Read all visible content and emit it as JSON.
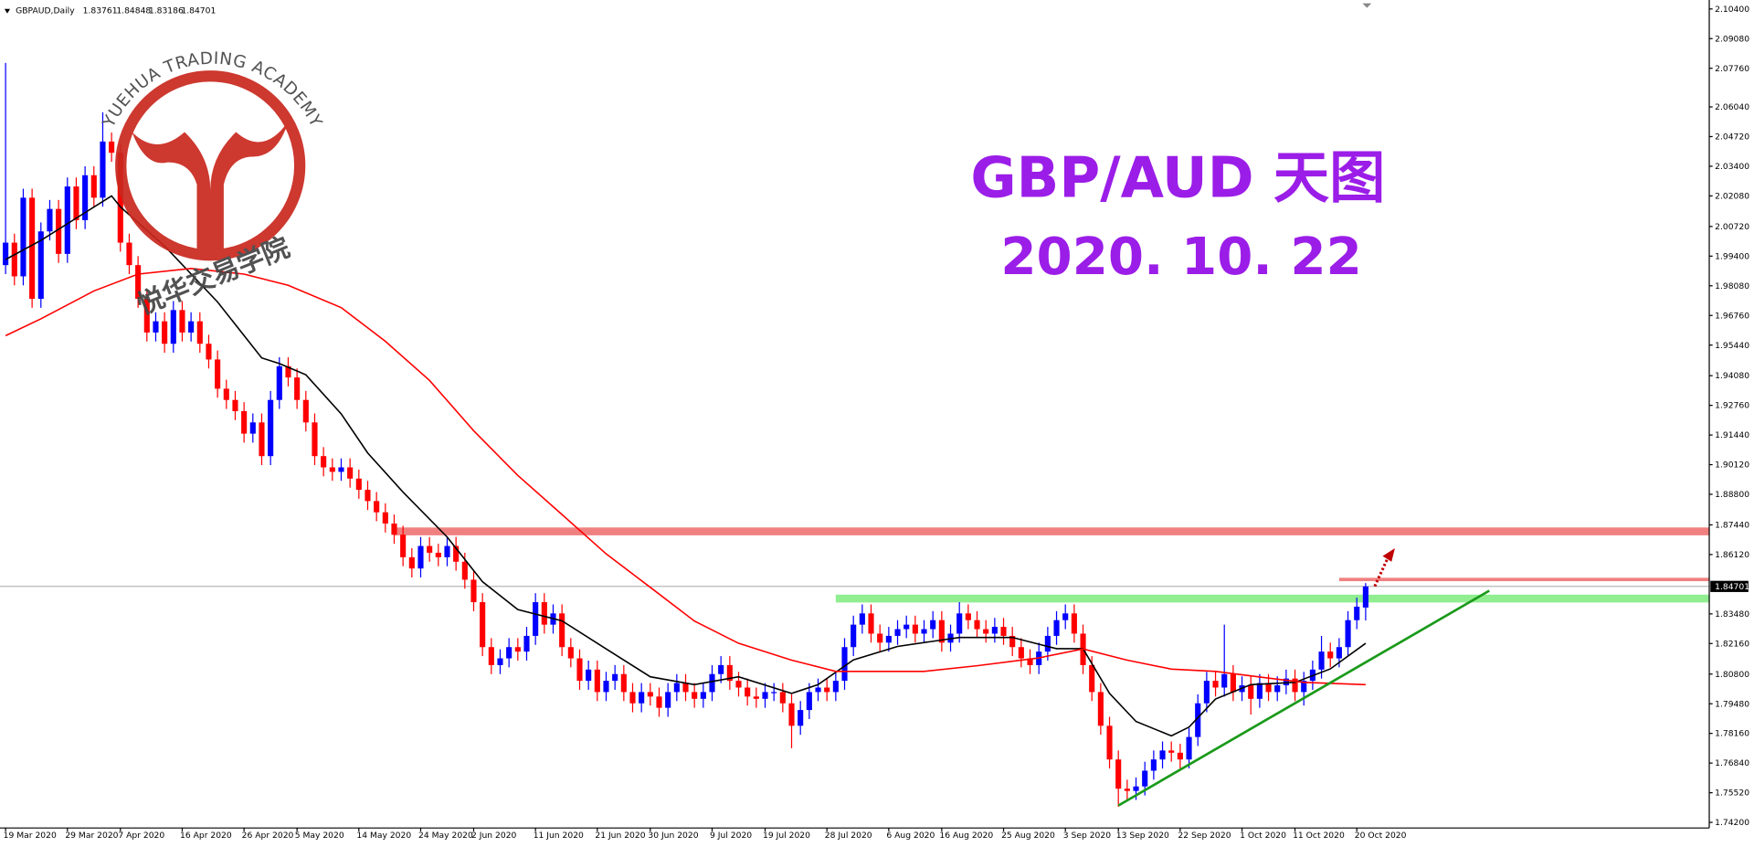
{
  "chart_data": {
    "type": "candlestick",
    "symbol": "GBPAUD,Daily",
    "title": "GBP/AUD 天图",
    "subtitle": "2020. 10. 22",
    "watermark_en": "YUEHUA TRADING ACADEMY",
    "watermark_cn": "悦华交易学院",
    "bull_color": "#0000ff",
    "bear_color": "#ff0000",
    "categories": [
      "19 Mar 2020",
      null,
      null,
      null,
      null,
      null,
      null,
      "29 Mar 2020",
      null,
      null,
      null,
      null,
      null,
      "7 Apr 2020",
      null,
      null,
      null,
      null,
      null,
      null,
      "16 Apr 2020",
      null,
      null,
      null,
      null,
      null,
      null,
      "26 Apr 2020",
      null,
      null,
      null,
      null,
      null,
      "5 May 2020",
      null,
      null,
      null,
      null,
      null,
      null,
      "14 May 2020",
      null,
      null,
      null,
      null,
      null,
      null,
      "24 May 2020",
      null,
      null,
      null,
      null,
      null,
      "2 Jun 2020",
      null,
      null,
      null,
      null,
      null,
      null,
      "11 Jun 2020",
      null,
      null,
      null,
      null,
      null,
      null,
      "21 Jun 2020",
      null,
      null,
      null,
      null,
      null,
      "30 Jun 2020",
      null,
      null,
      null,
      null,
      null,
      null,
      "9 Jul 2020",
      null,
      null,
      null,
      null,
      null,
      "19 Jul 2020",
      null,
      null,
      null,
      null,
      null,
      null,
      "28 Jul 2020",
      null,
      null,
      null,
      null,
      null,
      null,
      "6 Aug 2020",
      null,
      null,
      null,
      null,
      null,
      "16 Aug 2020",
      null,
      null,
      null,
      null,
      null,
      null,
      "25 Aug 2020",
      null,
      null,
      null,
      null,
      null,
      null,
      "3 Sep 2020",
      null,
      null,
      null,
      null,
      null,
      "13 Sep 2020",
      null,
      null,
      null,
      null,
      null,
      null,
      "22 Sep 2020",
      null,
      null,
      null,
      null,
      null,
      null,
      "1 Oct 2020",
      null,
      null,
      null,
      null,
      null,
      "11 Oct 2020",
      null,
      null,
      null,
      null,
      null,
      null,
      "20 Oct 2020",
      null
    ],
    "open": [
      1.99,
      2.0,
      1.985,
      2.02,
      1.975,
      2.005,
      2.015,
      1.995,
      2.025,
      2.01,
      2.03,
      2.02,
      2.045,
      2.04,
      2.0,
      1.99,
      1.975,
      1.96,
      1.965,
      1.955,
      1.97,
      1.96,
      1.965,
      1.955,
      1.948,
      1.935,
      1.93,
      1.925,
      1.915,
      1.92,
      1.905,
      1.93,
      1.945,
      1.94,
      1.93,
      1.92,
      1.905,
      1.9,
      1.898,
      1.9,
      1.895,
      1.89,
      1.885,
      1.88,
      1.875,
      1.87,
      1.86,
      1.855,
      1.865,
      1.862,
      1.86,
      1.865,
      1.858,
      1.85,
      1.84,
      1.82,
      1.812,
      1.815,
      1.82,
      1.818,
      1.825,
      1.84,
      1.83,
      1.835,
      1.82,
      1.815,
      1.805,
      1.81,
      1.8,
      1.805,
      1.808,
      1.8,
      1.795,
      1.8,
      1.798,
      1.793,
      1.8,
      1.804,
      1.8,
      1.797,
      1.8,
      1.808,
      1.812,
      1.805,
      1.802,
      1.798,
      1.797,
      1.8,
      1.8,
      1.795,
      1.785,
      1.792,
      1.8,
      1.802,
      1.8,
      1.805,
      1.82,
      1.83,
      1.835,
      1.826,
      1.822,
      1.825,
      1.828,
      1.83,
      1.826,
      1.828,
      1.832,
      1.822,
      1.826,
      1.835,
      1.832,
      1.828,
      1.826,
      1.829,
      1.825,
      1.82,
      1.815,
      1.812,
      1.818,
      1.825,
      1.832,
      1.835,
      1.826,
      1.812,
      1.8,
      1.785,
      1.77,
      1.757,
      1.756,
      1.758,
      1.765,
      1.77,
      1.774,
      1.773,
      1.77,
      1.78,
      1.795,
      1.805,
      1.802,
      1.808,
      1.8,
      1.803,
      1.797,
      1.804,
      1.8,
      1.803,
      1.806,
      1.8,
      1.805,
      1.81,
      1.818,
      1.815,
      1.82,
      1.832,
      1.83761
    ],
    "high": [
      2.08,
      2.004,
      2.024,
      2.024,
      2.009,
      2.019,
      2.019,
      2.029,
      2.029,
      2.034,
      2.034,
      2.058,
      2.049,
      2.044,
      2.004,
      1.994,
      1.979,
      1.969,
      1.969,
      1.974,
      1.974,
      1.969,
      1.969,
      1.959,
      1.952,
      1.939,
      1.934,
      1.929,
      1.924,
      1.924,
      1.934,
      1.949,
      1.949,
      1.944,
      1.934,
      1.924,
      1.909,
      1.904,
      1.904,
      1.904,
      1.899,
      1.894,
      1.889,
      1.884,
      1.879,
      1.874,
      1.864,
      1.869,
      1.869,
      1.866,
      1.869,
      1.869,
      1.862,
      1.854,
      1.844,
      1.824,
      1.819,
      1.824,
      1.824,
      1.829,
      1.844,
      1.844,
      1.839,
      1.839,
      1.824,
      1.819,
      1.814,
      1.814,
      1.809,
      1.812,
      1.812,
      1.804,
      1.804,
      1.804,
      1.802,
      1.804,
      1.808,
      1.808,
      1.804,
      1.804,
      1.812,
      1.816,
      1.816,
      1.809,
      1.806,
      1.802,
      1.804,
      1.804,
      1.804,
      1.799,
      1.796,
      1.804,
      1.806,
      1.806,
      1.809,
      1.824,
      1.834,
      1.839,
      1.839,
      1.83,
      1.829,
      1.832,
      1.834,
      1.834,
      1.832,
      1.836,
      1.836,
      1.83,
      1.84,
      1.839,
      1.836,
      1.832,
      1.833,
      1.833,
      1.829,
      1.824,
      1.819,
      1.822,
      1.829,
      1.836,
      1.839,
      1.839,
      1.83,
      1.816,
      1.804,
      1.789,
      1.774,
      1.761,
      1.762,
      1.769,
      1.774,
      1.778,
      1.778,
      1.777,
      1.784,
      1.799,
      1.809,
      1.809,
      1.83,
      1.812,
      1.807,
      1.807,
      1.808,
      1.808,
      1.807,
      1.81,
      1.81,
      1.809,
      1.814,
      1.825,
      1.822,
      1.824,
      1.836,
      1.842,
      1.84848
    ],
    "low": [
      1.986,
      1.981,
      1.981,
      1.971,
      1.971,
      2.001,
      1.991,
      1.991,
      2.006,
      2.006,
      2.016,
      2.016,
      2.036,
      1.996,
      1.986,
      1.971,
      1.956,
      1.956,
      1.951,
      1.951,
      1.956,
      1.956,
      1.951,
      1.944,
      1.931,
      1.926,
      1.921,
      1.911,
      1.911,
      1.901,
      1.901,
      1.926,
      1.936,
      1.926,
      1.916,
      1.901,
      1.896,
      1.894,
      1.894,
      1.891,
      1.886,
      1.881,
      1.876,
      1.871,
      1.866,
      1.856,
      1.851,
      1.851,
      1.858,
      1.856,
      1.856,
      1.854,
      1.846,
      1.836,
      1.816,
      1.808,
      1.808,
      1.811,
      1.814,
      1.814,
      1.821,
      1.826,
      1.826,
      1.816,
      1.811,
      1.801,
      1.801,
      1.796,
      1.796,
      1.801,
      1.796,
      1.791,
      1.791,
      1.794,
      1.789,
      1.789,
      1.796,
      1.796,
      1.793,
      1.793,
      1.796,
      1.804,
      1.801,
      1.798,
      1.794,
      1.793,
      1.793,
      1.796,
      1.791,
      1.775,
      1.781,
      1.788,
      1.796,
      1.796,
      1.796,
      1.801,
      1.816,
      1.826,
      1.822,
      1.818,
      1.818,
      1.821,
      1.824,
      1.822,
      1.822,
      1.824,
      1.818,
      1.818,
      1.822,
      1.828,
      1.824,
      1.822,
      1.822,
      1.821,
      1.816,
      1.811,
      1.808,
      1.808,
      1.814,
      1.821,
      1.828,
      1.822,
      1.808,
      1.796,
      1.781,
      1.766,
      1.749,
      1.752,
      1.752,
      1.754,
      1.761,
      1.766,
      1.769,
      1.766,
      1.766,
      1.776,
      1.791,
      1.798,
      1.798,
      1.796,
      1.796,
      1.79,
      1.793,
      1.796,
      1.796,
      1.799,
      1.796,
      1.794,
      1.801,
      1.806,
      1.811,
      1.811,
      1.816,
      1.828,
      1.83186
    ],
    "close": [
      2.0,
      1.985,
      2.02,
      1.975,
      2.005,
      2.015,
      1.995,
      2.025,
      2.01,
      2.03,
      2.02,
      2.045,
      2.04,
      2.0,
      1.99,
      1.975,
      1.96,
      1.965,
      1.955,
      1.97,
      1.96,
      1.965,
      1.955,
      1.948,
      1.935,
      1.93,
      1.925,
      1.915,
      1.92,
      1.905,
      1.93,
      1.945,
      1.94,
      1.93,
      1.92,
      1.905,
      1.9,
      1.898,
      1.9,
      1.895,
      1.89,
      1.885,
      1.88,
      1.875,
      1.87,
      1.86,
      1.855,
      1.865,
      1.862,
      1.86,
      1.865,
      1.858,
      1.85,
      1.84,
      1.82,
      1.812,
      1.815,
      1.82,
      1.818,
      1.825,
      1.84,
      1.83,
      1.835,
      1.82,
      1.815,
      1.805,
      1.81,
      1.8,
      1.805,
      1.808,
      1.8,
      1.795,
      1.8,
      1.798,
      1.793,
      1.8,
      1.804,
      1.8,
      1.797,
      1.8,
      1.808,
      1.812,
      1.805,
      1.802,
      1.798,
      1.797,
      1.8,
      1.8,
      1.795,
      1.785,
      1.792,
      1.8,
      1.802,
      1.8,
      1.805,
      1.82,
      1.83,
      1.835,
      1.826,
      1.822,
      1.825,
      1.828,
      1.83,
      1.826,
      1.828,
      1.832,
      1.822,
      1.826,
      1.835,
      1.832,
      1.828,
      1.826,
      1.829,
      1.825,
      1.82,
      1.815,
      1.812,
      1.818,
      1.825,
      1.832,
      1.835,
      1.826,
      1.812,
      1.8,
      1.785,
      1.77,
      1.757,
      1.756,
      1.758,
      1.765,
      1.77,
      1.774,
      1.773,
      1.77,
      1.78,
      1.795,
      1.805,
      1.802,
      1.808,
      1.8,
      1.803,
      1.797,
      1.804,
      1.8,
      1.803,
      1.806,
      1.8,
      1.805,
      1.81,
      1.818,
      1.815,
      1.82,
      1.832,
      1.838,
      1.84701
    ],
    "series": [
      {
        "color": "#000000",
        "x": [
          0,
          4,
          8,
          12,
          13,
          18,
          24,
          29,
          31,
          34,
          38,
          41,
          45,
          50,
          54,
          58,
          63,
          68,
          73,
          78,
          83,
          89,
          92,
          96,
          101,
          108,
          114,
          119,
          122,
          125,
          128,
          132,
          134,
          137,
          141,
          146,
          150,
          154
        ],
        "values": [
          1.9925,
          2.001,
          2.0109,
          2.0208,
          2.0159,
          1.9985,
          1.9736,
          1.9487,
          1.9462,
          1.9412,
          1.9238,
          1.9064,
          1.889,
          1.869,
          1.8491,
          1.8367,
          1.8317,
          1.8192,
          1.8068,
          1.8033,
          1.8068,
          1.7994,
          1.8033,
          1.8143,
          1.8203,
          1.8243,
          1.8243,
          1.8193,
          1.8193,
          1.7994,
          1.7869,
          1.7805,
          1.7844,
          1.7969,
          1.8033,
          1.8043,
          1.8103,
          1.8217
        ]
      },
      {
        "color": "#ff0000",
        "x": [
          0,
          4,
          10,
          15,
          21,
          27,
          32,
          38,
          43,
          48,
          53,
          58,
          63,
          68,
          73,
          78,
          83,
          89,
          94,
          99,
          104,
          110,
          117,
          122,
          127,
          132,
          137,
          142,
          147,
          154
        ],
        "values": [
          1.9586,
          1.9661,
          1.9785,
          1.986,
          1.9885,
          1.986,
          1.981,
          1.9711,
          1.9561,
          1.9387,
          1.9163,
          1.8964,
          1.879,
          1.8615,
          1.8466,
          1.8316,
          1.8217,
          1.8142,
          1.8092,
          1.8092,
          1.8092,
          1.8117,
          1.8152,
          1.8192,
          1.8142,
          1.8102,
          1.8092,
          1.8067,
          1.8043,
          1.8033
        ]
      }
    ],
    "resistance": {
      "value": 1.8715,
      "from": 44,
      "color": "#f08080"
    },
    "support": {
      "value": 1.8416,
      "from": 94,
      "color": "#90ee90"
    },
    "target": {
      "value": 1.8501,
      "from": 151,
      "color": "#f08080"
    },
    "trendline": {
      "x": [
        126,
        168
      ],
      "values": [
        1.7495,
        1.8451
      ],
      "color": "#1a9a1a"
    },
    "ylim": [
      1.742,
      2.104
    ],
    "yticks": [
      {
        "value": 2.104,
        "label": "2.10400"
      },
      {
        "value": 2.0908,
        "label": "2.09080"
      },
      {
        "value": 2.0776,
        "label": "2.07760"
      },
      {
        "value": 2.0604,
        "label": "2.06040"
      },
      {
        "value": 2.0472,
        "label": "2.04720"
      },
      {
        "value": 2.034,
        "label": "2.03400"
      },
      {
        "value": 2.0208,
        "label": "2.02080"
      },
      {
        "value": 2.0072,
        "label": "2.00720"
      },
      {
        "value": 1.994,
        "label": "1.99400"
      },
      {
        "value": 1.9808,
        "label": "1.98080"
      },
      {
        "value": 1.9676,
        "label": "1.96760"
      },
      {
        "value": 1.9544,
        "label": "1.95440"
      },
      {
        "value": 1.9408,
        "label": "1.94080"
      },
      {
        "value": 1.9276,
        "label": "1.92760"
      },
      {
        "value": 1.9144,
        "label": "1.91440"
      },
      {
        "value": 1.9012,
        "label": "1.90120"
      },
      {
        "value": 1.888,
        "label": "1.88800"
      },
      {
        "value": 1.8744,
        "label": "1.87440"
      },
      {
        "value": 1.8612,
        "label": "1.86120"
      },
      {
        "value": 1.8348,
        "label": "1.83480"
      },
      {
        "value": 1.8216,
        "label": "1.82160"
      },
      {
        "value": 1.808,
        "label": "1.80800"
      },
      {
        "value": 1.7948,
        "label": "1.79480"
      },
      {
        "value": 1.7816,
        "label": "1.78160"
      },
      {
        "value": 1.7684,
        "label": "1.76840"
      },
      {
        "value": 1.7552,
        "label": "1.75520"
      },
      {
        "value": 1.742,
        "label": "1.74200"
      }
    ]
  }
}
